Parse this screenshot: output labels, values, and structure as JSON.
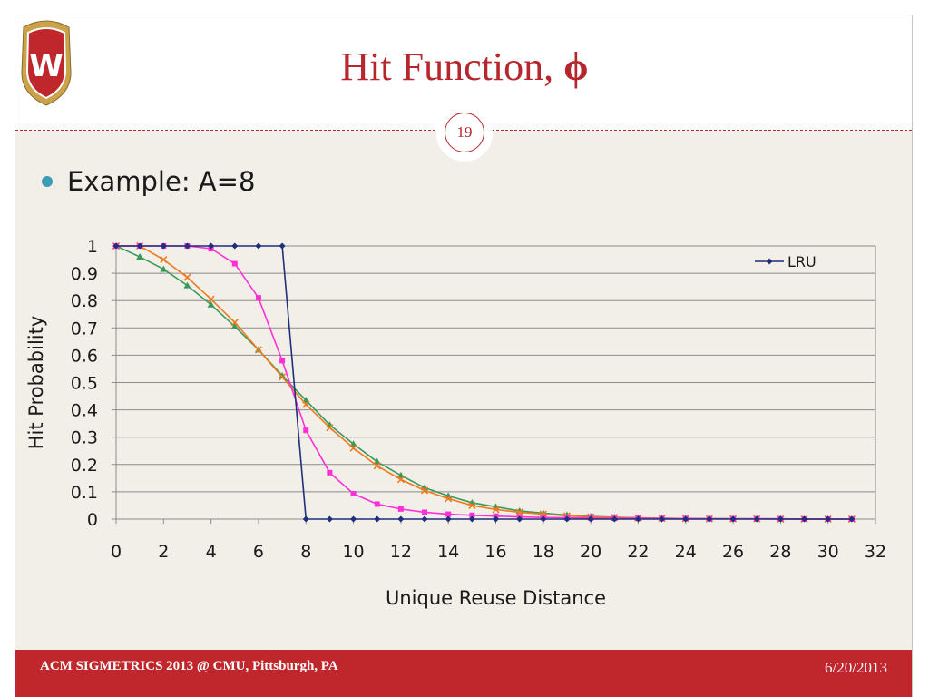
{
  "slide": {
    "title": "Hit Function, ",
    "title_symbol": "ϕ",
    "number": "19",
    "bullet": "Example: A=8"
  },
  "footer": {
    "left": "ACM SIGMETRICS 2013 @ CMU, Pittsburgh, PA",
    "right": "6/20/2013"
  },
  "logo": {
    "letter": "W",
    "colors": {
      "crest": "#c0272d",
      "gold": "#c9a24a"
    }
  },
  "chart_data": {
    "type": "line",
    "title": "",
    "xlabel": "Unique Reuse Distance",
    "ylabel": "Hit Probability",
    "xlim": [
      0,
      32
    ],
    "ylim": [
      0,
      1
    ],
    "xticks": [
      "0",
      "2",
      "4",
      "6",
      "8",
      "10",
      "12",
      "14",
      "16",
      "18",
      "20",
      "22",
      "24",
      "26",
      "28",
      "30",
      "32"
    ],
    "yticks": [
      "0",
      "0.1",
      "0.2",
      "0.3",
      "0.4",
      "0.5",
      "0.6",
      "0.7",
      "0.8",
      "0.9",
      "1"
    ],
    "grid": true,
    "legend_position": "top-right",
    "series": [
      {
        "name": "LRU",
        "color": "#1f2f7a",
        "marker": "diamond",
        "x": [
          0,
          1,
          2,
          3,
          4,
          5,
          6,
          7,
          8,
          9,
          10,
          11,
          12,
          13,
          14,
          15,
          16,
          17,
          18,
          19,
          20,
          21,
          22,
          23,
          24,
          25,
          26,
          27,
          28,
          29,
          30,
          31
        ],
        "y": [
          1,
          1,
          1,
          1,
          1,
          1,
          1,
          1,
          0,
          0,
          0,
          0,
          0,
          0,
          0,
          0,
          0,
          0,
          0,
          0,
          0,
          0,
          0,
          0,
          0,
          0,
          0,
          0,
          0,
          0,
          0,
          0
        ]
      },
      {
        "color": "#ff2fd8",
        "marker": "square",
        "x": [
          0,
          1,
          2,
          3,
          4,
          5,
          6,
          7,
          8,
          9,
          10,
          11,
          12,
          13,
          14,
          15,
          16,
          17,
          18,
          19,
          20,
          21,
          22,
          23,
          24,
          25,
          26,
          27,
          28,
          29,
          30,
          31
        ],
        "y": [
          1,
          1,
          1,
          1,
          0.99,
          0.935,
          0.81,
          0.58,
          0.325,
          0.17,
          0.093,
          0.055,
          0.037,
          0.025,
          0.018,
          0.014,
          0.011,
          0.008,
          0.006,
          0.005,
          0.004,
          0.003,
          0.003,
          0.002,
          0.002,
          0.001,
          0.001,
          0.001,
          0.001,
          0,
          0,
          0
        ]
      },
      {
        "color": "#f07a1e",
        "marker": "x",
        "x": [
          0,
          1,
          2,
          3,
          4,
          5,
          6,
          7,
          8,
          9,
          10,
          11,
          12,
          13,
          14,
          15,
          16,
          17,
          18,
          19,
          20,
          21,
          22,
          23,
          24,
          25,
          26,
          27,
          28,
          29,
          30,
          31
        ],
        "y": [
          1,
          1,
          0.95,
          0.885,
          0.805,
          0.72,
          0.62,
          0.52,
          0.42,
          0.335,
          0.26,
          0.195,
          0.145,
          0.105,
          0.075,
          0.05,
          0.035,
          0.025,
          0.018,
          0.012,
          0.008,
          0.006,
          0.004,
          0.003,
          0.002,
          0.001,
          0.001,
          0.001,
          0,
          0,
          0,
          0
        ]
      },
      {
        "color": "#3a9a5b",
        "marker": "triangle",
        "x": [
          0,
          1,
          2,
          3,
          4,
          5,
          6,
          7,
          8,
          9,
          10,
          11,
          12,
          13,
          14,
          15,
          16,
          17,
          18,
          19,
          20,
          21,
          22,
          23,
          24,
          25,
          26,
          27,
          28,
          29,
          30,
          31
        ],
        "y": [
          1,
          0.96,
          0.915,
          0.855,
          0.785,
          0.705,
          0.62,
          0.525,
          0.435,
          0.345,
          0.275,
          0.21,
          0.16,
          0.115,
          0.085,
          0.06,
          0.045,
          0.03,
          0.022,
          0.015,
          0.01,
          0.007,
          0.005,
          0.003,
          0.002,
          0.002,
          0.001,
          0.001,
          0.001,
          0,
          0,
          0
        ]
      }
    ]
  }
}
